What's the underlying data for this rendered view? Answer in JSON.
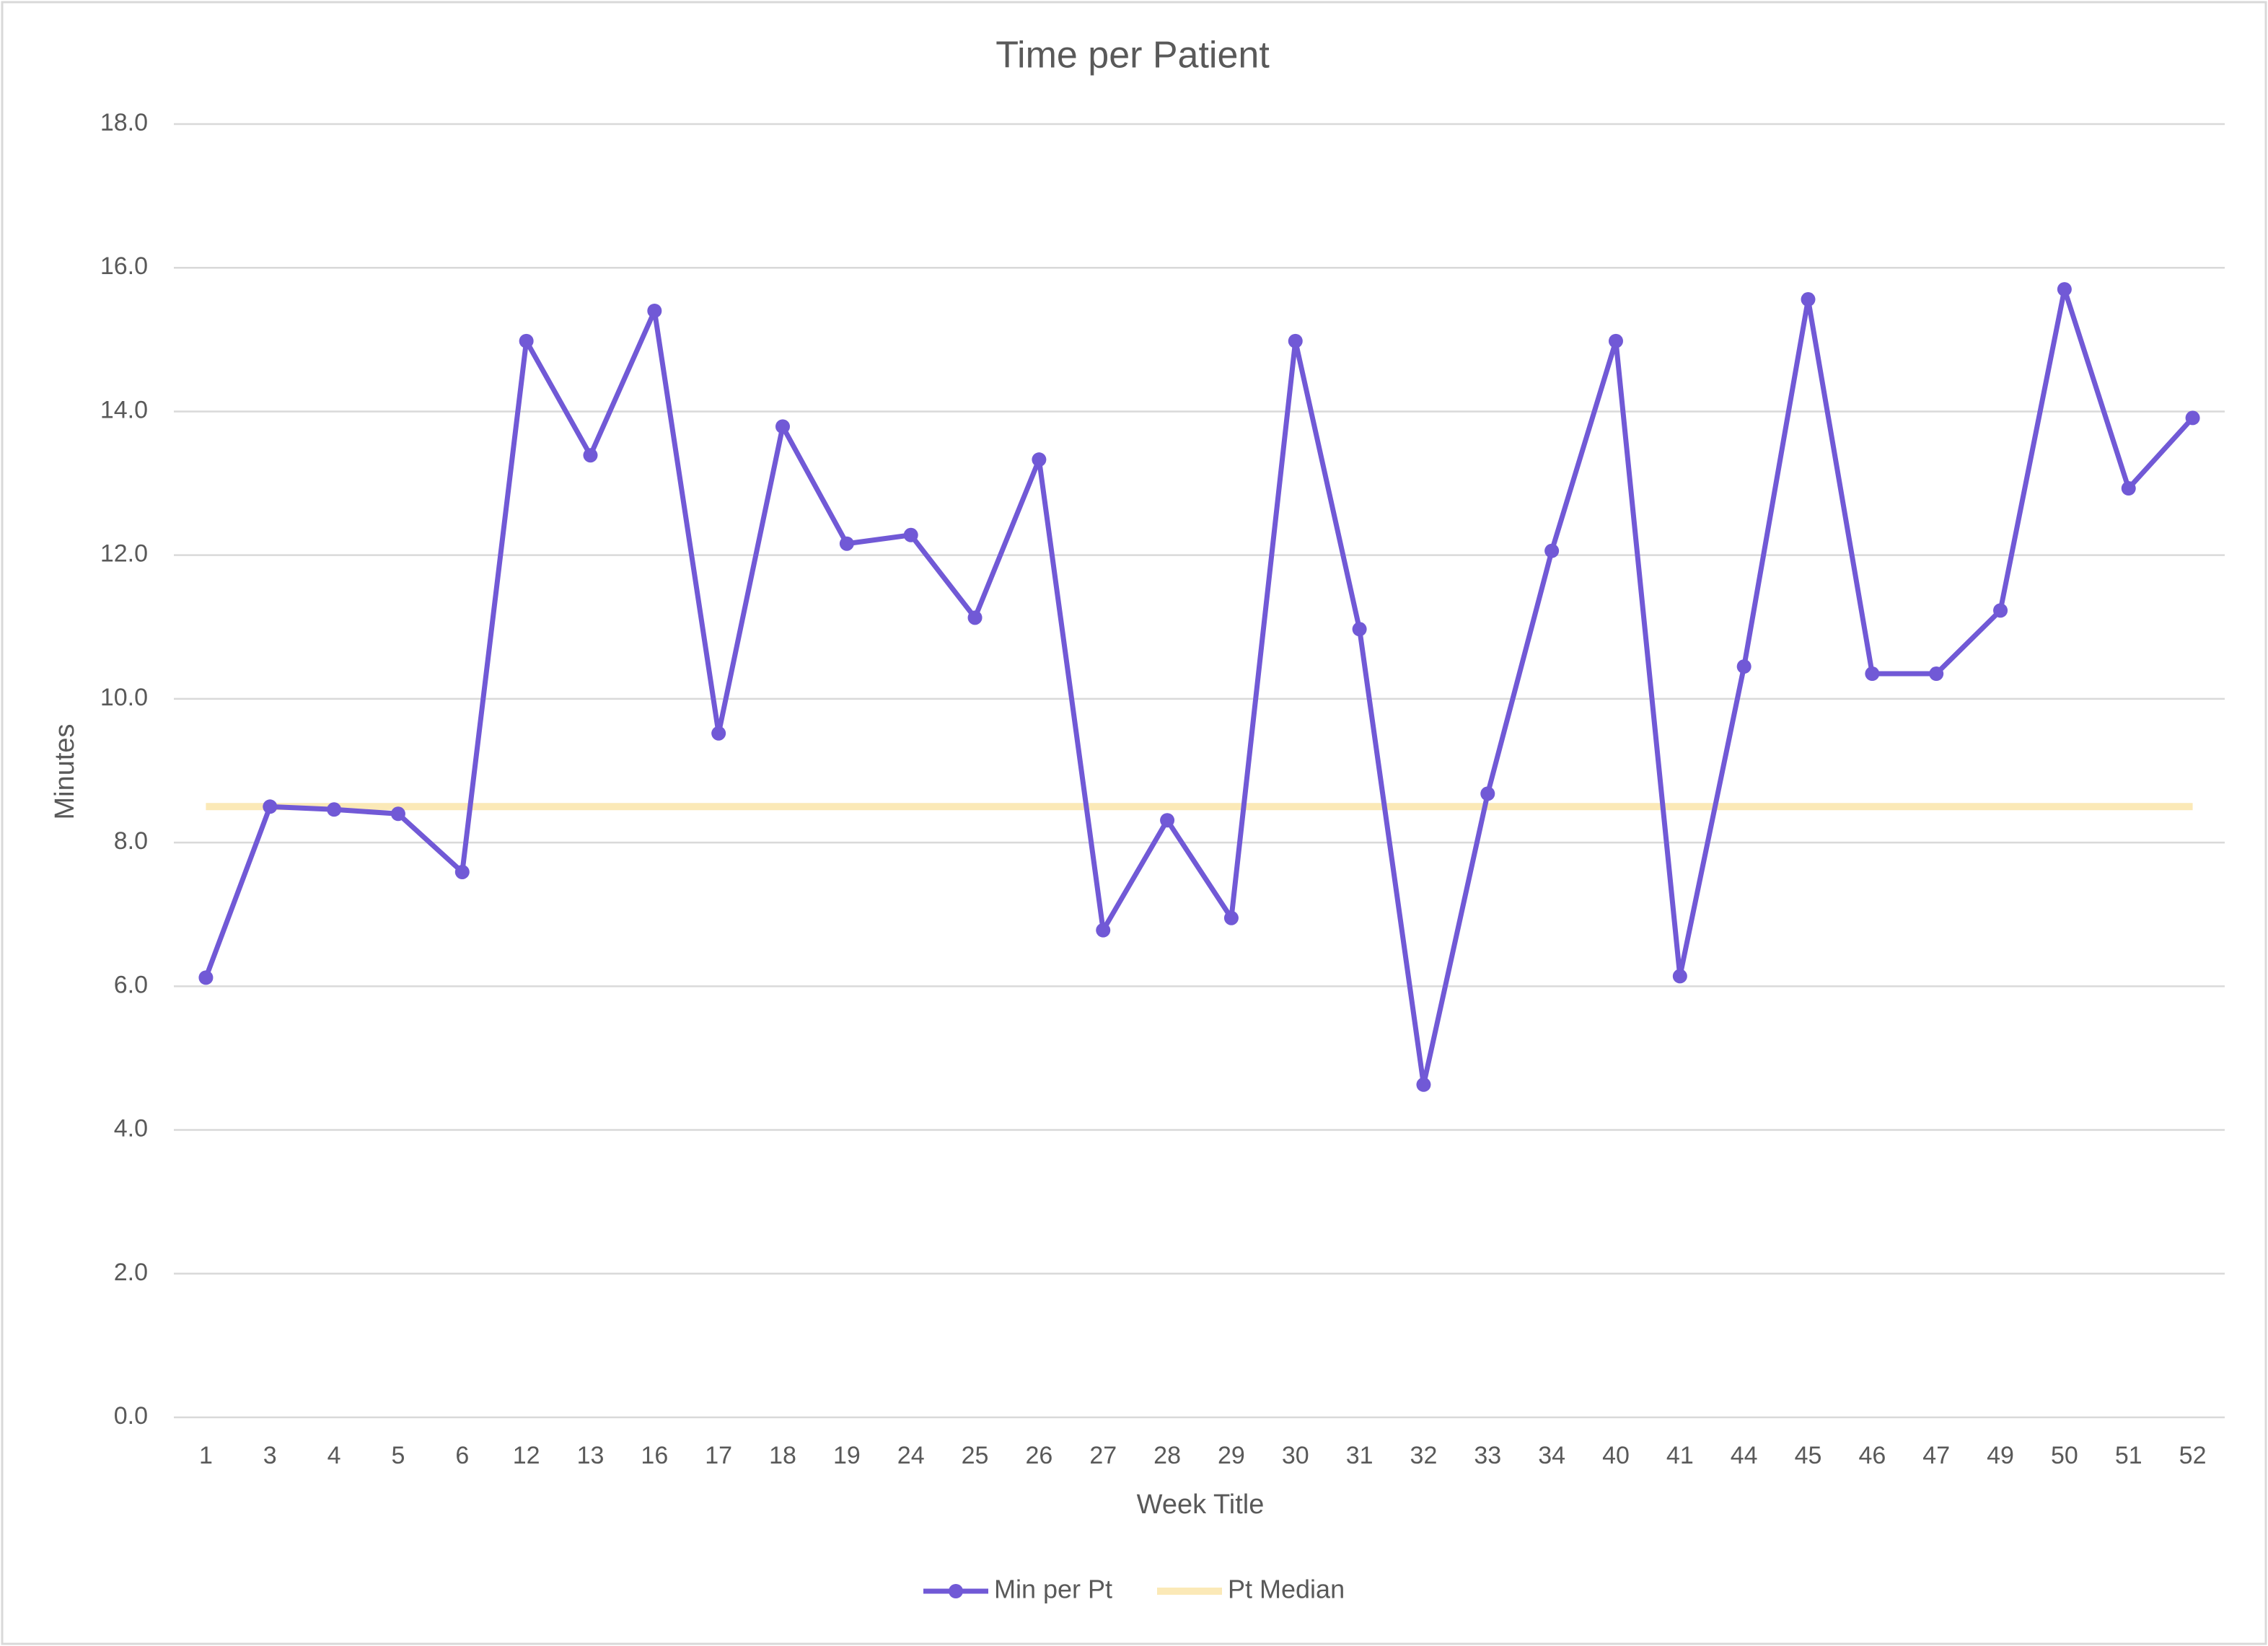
{
  "chart_data": {
    "type": "line",
    "title": "Time per Patient",
    "x_label": "Week Title",
    "y_label": "Minutes",
    "categories": [
      "1",
      "3",
      "4",
      "5",
      "6",
      "12",
      "13",
      "16",
      "17",
      "18",
      "19",
      "24",
      "25",
      "26",
      "27",
      "28",
      "29",
      "30",
      "31",
      "32",
      "33",
      "34",
      "40",
      "41",
      "44",
      "45",
      "46",
      "47",
      "49",
      "50",
      "51",
      "52"
    ],
    "series": [
      {
        "name": "Min per Pt",
        "color": "#7159d6",
        "marker": true,
        "values": [
          6.12,
          8.5,
          8.46,
          8.4,
          7.59,
          14.98,
          13.39,
          15.4,
          9.52,
          13.79,
          12.16,
          12.28,
          11.13,
          13.33,
          6.78,
          8.31,
          6.95,
          14.98,
          10.97,
          4.63,
          8.68,
          12.06,
          14.98,
          6.14,
          10.45,
          15.56,
          10.35,
          10.35,
          11.23,
          15.7,
          12.93,
          13.91
        ]
      },
      {
        "name": "Pt Median",
        "color": "#fbe9b7",
        "marker": false,
        "values": [
          8.5,
          8.5,
          8.5,
          8.5,
          8.5,
          8.5,
          8.5,
          8.5,
          8.5,
          8.5,
          8.5,
          8.5,
          8.5,
          8.5,
          8.5,
          8.5,
          8.5,
          8.5,
          8.5,
          8.5,
          8.5,
          8.5,
          8.5,
          8.5,
          8.5,
          8.5,
          8.5,
          8.5,
          8.5,
          8.5,
          8.5,
          8.5
        ]
      }
    ],
    "ylim": [
      0,
      18
    ],
    "yticks": [
      {
        "value": 0,
        "label": "0.0"
      },
      {
        "value": 2,
        "label": "2.0"
      },
      {
        "value": 4,
        "label": "4.0"
      },
      {
        "value": 6,
        "label": "6.0"
      },
      {
        "value": 8,
        "label": "8.0"
      },
      {
        "value": 10,
        "label": "10.0"
      },
      {
        "value": 12,
        "label": "12.0"
      },
      {
        "value": 14,
        "label": "14.0"
      },
      {
        "value": 16,
        "label": "16.0"
      },
      {
        "value": 18,
        "label": "18.0"
      }
    ],
    "grid": true,
    "legend": "bottom"
  }
}
